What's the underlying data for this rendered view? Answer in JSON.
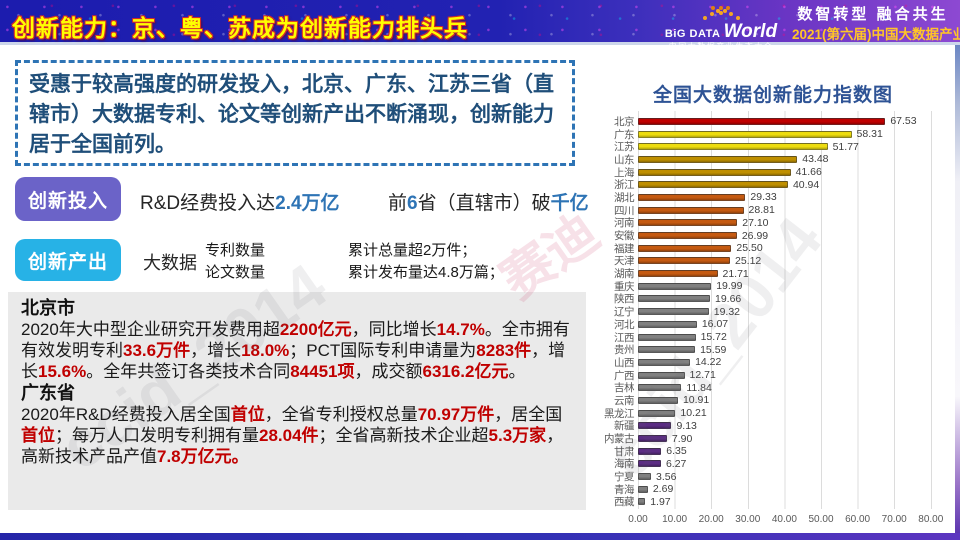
{
  "header": {
    "title": "创新能力：京、粤、苏成为创新能力排头兵",
    "logo": {
      "big_data": "BiG DATA",
      "world": "World",
      "subtitle": "中国大数据产业生态大会"
    },
    "slogan": "数智转型 融合共生",
    "conference": "2021(第六届)中国大数据产业生态大会"
  },
  "intro": {
    "text": "受惠于较高强度的研发投入，北京、广东、江苏三省（直辖市）大数据专利、论文等创新产出不断涌现，创新能力居于全国前列。"
  },
  "innovation_input": {
    "badge": "创新投入",
    "part1": [
      {
        "t": "R&D经费投入达",
        "s": "d"
      },
      {
        "t": "2.4万亿",
        "s": "b"
      }
    ],
    "part2": [
      {
        "t": "前",
        "s": "d"
      },
      {
        "t": "6",
        "s": "b"
      },
      {
        "t": "省（直辖市）破",
        "s": "d"
      },
      {
        "t": "千亿",
        "s": "b"
      }
    ]
  },
  "innovation_output": {
    "badge": "创新产出",
    "prefix": "大数据",
    "pair1": [
      "专利数量",
      "论文数量"
    ],
    "pair2": [
      "累计总量超2万件；",
      "累计发布量达4.8万篇；"
    ]
  },
  "beijing": {
    "title": "北京市",
    "segments": [
      {
        "t": "2020年大中型企业研究开发费用超",
        "s": "d"
      },
      {
        "t": "2200亿元",
        "s": "r"
      },
      {
        "t": "，同比增长",
        "s": "d"
      },
      {
        "t": "14.7%",
        "s": "r"
      },
      {
        "t": "。全市拥有有效发明专利",
        "s": "d"
      },
      {
        "t": "33.6万件",
        "s": "r"
      },
      {
        "t": "，增长",
        "s": "d"
      },
      {
        "t": "18.0%",
        "s": "r"
      },
      {
        "t": "；PCT国际专利申请量为",
        "s": "d"
      },
      {
        "t": "8283件",
        "s": "r"
      },
      {
        "t": "，增长",
        "s": "d"
      },
      {
        "t": "15.6%",
        "s": "r"
      },
      {
        "t": "。全年共签订各类技术合同",
        "s": "d"
      },
      {
        "t": "84451项",
        "s": "r"
      },
      {
        "t": "，成交额",
        "s": "d"
      },
      {
        "t": "6316.2亿元",
        "s": "r"
      },
      {
        "t": "。",
        "s": "d"
      }
    ]
  },
  "guangdong": {
    "title": "广东省",
    "segments": [
      {
        "t": "2020年R&D经费投入居全国",
        "s": "d"
      },
      {
        "t": "首位",
        "s": "r"
      },
      {
        "t": "，全省专利授权总量",
        "s": "d"
      },
      {
        "t": "70.97万件",
        "s": "r"
      },
      {
        "t": "，居全国",
        "s": "d"
      },
      {
        "t": "首位",
        "s": "r"
      },
      {
        "t": "；每万人口发明专利拥有量",
        "s": "d"
      },
      {
        "t": "28.04件",
        "s": "r"
      },
      {
        "t": "；全省高新技术企业超",
        "s": "d"
      },
      {
        "t": "5.3万家",
        "s": "r"
      },
      {
        "t": "，高新技术产品产值",
        "s": "d"
      },
      {
        "t": "7.8万亿元。",
        "s": "r"
      }
    ]
  },
  "chart_data": {
    "type": "bar",
    "orientation": "horizontal",
    "title": "全国大数据创新能力指数图",
    "xlabel": "",
    "ylabel": "",
    "xlim": [
      0,
      80
    ],
    "grid": "vertical",
    "xticks": [
      "0.00",
      "10.00",
      "20.00",
      "30.00",
      "40.00",
      "50.00",
      "60.00",
      "70.00",
      "80.00"
    ],
    "items": [
      {
        "label": "北京",
        "value": 67.53,
        "color": "#C00000"
      },
      {
        "label": "广东",
        "value": 58.31,
        "color": "#EDDC0F"
      },
      {
        "label": "江苏",
        "value": 51.77,
        "color": "#EDDC0F"
      },
      {
        "label": "山东",
        "value": 43.48,
        "color": "#BF8F00"
      },
      {
        "label": "上海",
        "value": 41.66,
        "color": "#BF8F00"
      },
      {
        "label": "浙江",
        "value": 40.94,
        "color": "#BF8F00"
      },
      {
        "label": "湖北",
        "value": 29.33,
        "color": "#C55A11"
      },
      {
        "label": "四川",
        "value": 28.81,
        "color": "#C55A11"
      },
      {
        "label": "河南",
        "value": 27.1,
        "color": "#C55A11"
      },
      {
        "label": "安徽",
        "value": 26.99,
        "color": "#C55A11"
      },
      {
        "label": "福建",
        "value": 25.5,
        "color": "#C55A11"
      },
      {
        "label": "天津",
        "value": 25.12,
        "color": "#C55A11"
      },
      {
        "label": "湖南",
        "value": 21.71,
        "color": "#C55A11"
      },
      {
        "label": "重庆",
        "value": 19.99,
        "color": "#808080"
      },
      {
        "label": "陕西",
        "value": 19.66,
        "color": "#808080"
      },
      {
        "label": "辽宁",
        "value": 19.32,
        "color": "#808080"
      },
      {
        "label": "河北",
        "value": 16.07,
        "color": "#808080"
      },
      {
        "label": "江西",
        "value": 15.72,
        "color": "#808080"
      },
      {
        "label": "贵州",
        "value": 15.59,
        "color": "#808080"
      },
      {
        "label": "山西",
        "value": 14.22,
        "color": "#808080"
      },
      {
        "label": "广西",
        "value": 12.71,
        "color": "#808080"
      },
      {
        "label": "吉林",
        "value": 11.84,
        "color": "#808080"
      },
      {
        "label": "云南",
        "value": 10.91,
        "color": "#808080"
      },
      {
        "label": "黑龙江",
        "value": 10.21,
        "color": "#808080"
      },
      {
        "label": "新疆",
        "value": 9.13,
        "color": "#5B2C83"
      },
      {
        "label": "内蒙古",
        "value": 7.9,
        "color": "#5B2C83"
      },
      {
        "label": "甘肃",
        "value": 6.35,
        "color": "#5B2C83"
      },
      {
        "label": "海南",
        "value": 6.27,
        "color": "#5B2C83"
      },
      {
        "label": "宁夏",
        "value": 3.56,
        "color": "#808080"
      },
      {
        "label": "青海",
        "value": 2.69,
        "color": "#808080"
      },
      {
        "label": "西藏",
        "value": 1.97,
        "color": "#808080"
      }
    ]
  },
  "watermarks": {
    "gray1": "ccid_2014",
    "gray2": "ccid_2014",
    "pink": "赛迪"
  }
}
